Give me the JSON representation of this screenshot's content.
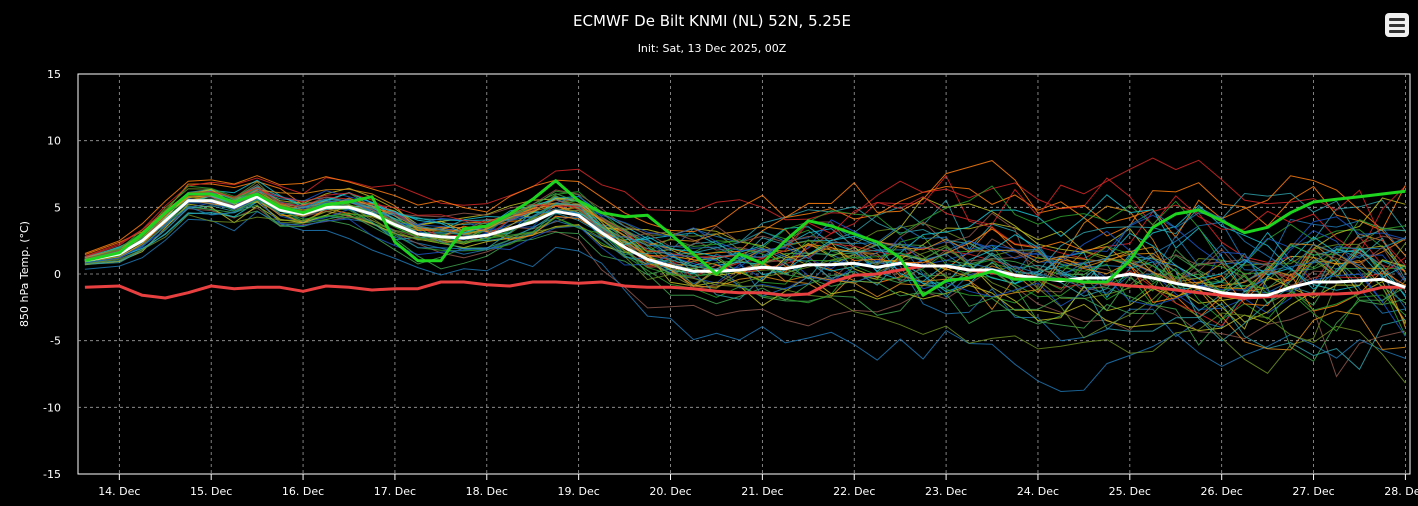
{
  "header": {
    "title": "ECMWF De Bilt KNMI (NL) 52N, 5.25E",
    "subtitle": "Init: Sat, 13 Dec 2025, 00Z",
    "menu_icon": "hamburger-menu-icon"
  },
  "chart_data": {
    "type": "line",
    "title": "ECMWF De Bilt KNMI (NL) 52N, 5.25E",
    "subtitle": "Init: Sat, 13 Dec 2025, 00Z",
    "ylabel": "850 hPa Temp. (°C)",
    "xlabel": "",
    "ylim": [
      -15,
      15
    ],
    "yticks": [
      15,
      10,
      5,
      0,
      -5,
      -10,
      -15
    ],
    "x_range_days": [
      13.55,
      28.05
    ],
    "xticks": [
      {
        "label": "14. Dec",
        "day": 14
      },
      {
        "label": "15. Dec",
        "day": 15
      },
      {
        "label": "16. Dec",
        "day": 16
      },
      {
        "label": "17. Dec",
        "day": 17
      },
      {
        "label": "18. Dec",
        "day": 18
      },
      {
        "label": "19. Dec",
        "day": 19
      },
      {
        "label": "20. Dec",
        "day": 20
      },
      {
        "label": "21. Dec",
        "day": 21
      },
      {
        "label": "22. Dec",
        "day": 22
      },
      {
        "label": "23. Dec",
        "day": 23
      },
      {
        "label": "24. Dec",
        "day": 24
      },
      {
        "label": "25. Dec",
        "day": 25
      },
      {
        "label": "26. Dec",
        "day": 26
      },
      {
        "label": "27. Dec",
        "day": 27
      },
      {
        "label": "28. Dec",
        "day": 28
      }
    ],
    "grid": true,
    "legend": "none",
    "background": "#000000",
    "ensemble": {
      "member_count": 50,
      "palette": [
        "#1f77b4",
        "#2ca02c",
        "#ff7f0e",
        "#17becf",
        "#bcbd22",
        "#8c564b",
        "#d62728",
        "#1a55c4",
        "#3fa34d",
        "#d98c1a",
        "#2f9fa8",
        "#6b8e23"
      ],
      "spread_days": [
        13.625,
        14.5,
        15.0,
        16.0,
        17.0,
        18.0,
        19.0,
        20.0,
        21.0,
        22.0,
        23.0,
        24.0,
        25.0,
        26.0,
        27.0,
        28.0
      ],
      "spread_sd": [
        0.3,
        0.7,
        0.8,
        0.9,
        1.0,
        1.1,
        1.3,
        1.7,
        2.2,
        2.7,
        3.0,
        3.3,
        3.5,
        3.8,
        4.0,
        4.2
      ]
    },
    "series": [
      {
        "role": "ensemble-mean",
        "color": "#ffffff",
        "x": [
          13.625,
          14.0,
          14.25,
          14.5,
          14.75,
          15.0,
          15.25,
          15.5,
          15.75,
          16.0,
          16.25,
          16.5,
          16.75,
          17.0,
          17.25,
          17.5,
          17.75,
          18.0,
          18.25,
          18.5,
          18.75,
          19.0,
          19.25,
          19.5,
          19.75,
          20.0,
          20.25,
          20.5,
          20.75,
          21.0,
          21.25,
          21.5,
          21.75,
          22.0,
          22.25,
          22.5,
          22.75,
          23.0,
          23.25,
          23.5,
          23.75,
          24.0,
          24.25,
          24.5,
          24.75,
          25.0,
          25.25,
          25.5,
          25.75,
          26.0,
          26.25,
          26.5,
          26.75,
          27.0,
          27.25,
          27.5,
          27.75,
          28.0
        ],
        "y": [
          1.0,
          1.5,
          2.5,
          4.0,
          5.5,
          5.5,
          5.0,
          5.8,
          4.8,
          4.5,
          5.0,
          5.0,
          4.5,
          3.7,
          3.0,
          2.8,
          2.7,
          2.9,
          3.4,
          3.9,
          4.7,
          4.4,
          3.1,
          2.0,
          1.1,
          0.6,
          0.2,
          0.2,
          0.3,
          0.5,
          0.4,
          0.7,
          0.7,
          0.8,
          0.5,
          0.8,
          0.6,
          0.6,
          0.3,
          0.3,
          -0.1,
          -0.3,
          -0.5,
          -0.3,
          -0.3,
          0.0,
          -0.3,
          -0.7,
          -1.0,
          -1.4,
          -1.6,
          -1.6,
          -1.0,
          -0.6,
          -0.6,
          -0.5,
          -0.4,
          -1.0
        ]
      },
      {
        "role": "operational",
        "color": "#1ed41e",
        "x": [
          13.625,
          14.0,
          14.25,
          14.5,
          14.75,
          15.0,
          15.25,
          15.5,
          15.75,
          16.0,
          16.25,
          16.5,
          16.75,
          17.0,
          17.25,
          17.5,
          17.75,
          18.0,
          18.25,
          18.5,
          18.75,
          19.0,
          19.25,
          19.5,
          19.75,
          20.0,
          20.25,
          20.5,
          20.75,
          21.0,
          21.25,
          21.5,
          21.75,
          22.0,
          22.25,
          22.5,
          22.75,
          23.0,
          23.25,
          23.5,
          23.75,
          24.0,
          24.25,
          24.5,
          24.75,
          25.0,
          25.25,
          25.5,
          25.75,
          26.0,
          26.25,
          26.5,
          26.75,
          27.0,
          27.25,
          27.5,
          27.75,
          28.0
        ],
        "y": [
          1.0,
          1.6,
          3.0,
          4.6,
          6.0,
          6.0,
          5.4,
          6.0,
          5.0,
          4.6,
          5.2,
          5.4,
          5.8,
          2.4,
          1.0,
          1.0,
          3.4,
          3.6,
          4.5,
          5.6,
          7.0,
          5.5,
          4.6,
          4.3,
          4.4,
          3.0,
          1.5,
          0.0,
          1.5,
          0.8,
          2.5,
          4.0,
          3.6,
          3.0,
          2.4,
          1.2,
          -1.6,
          -0.5,
          -0.3,
          0.2,
          -0.4,
          -0.4,
          -0.4,
          -0.6,
          -0.6,
          1.0,
          3.5,
          4.5,
          4.8,
          4.0,
          3.1,
          3.5,
          4.6,
          5.4,
          5.6,
          5.8,
          6.0,
          6.2
        ]
      },
      {
        "role": "climatology",
        "color": "#e84040",
        "x": [
          13.625,
          14.0,
          14.25,
          14.5,
          14.75,
          15.0,
          15.25,
          15.5,
          15.75,
          16.0,
          16.25,
          16.5,
          16.75,
          17.0,
          17.25,
          17.5,
          17.75,
          18.0,
          18.25,
          18.5,
          18.75,
          19.0,
          19.25,
          19.5,
          19.75,
          20.0,
          20.25,
          20.5,
          20.75,
          21.0,
          21.25,
          21.5,
          21.75,
          22.0,
          22.25,
          22.5,
          22.75,
          23.0,
          23.25,
          23.5,
          23.75,
          24.0,
          24.25,
          24.5,
          24.75,
          25.0,
          25.25,
          25.5,
          25.75,
          26.0,
          26.25,
          26.5,
          26.75,
          27.0,
          27.25,
          27.5,
          27.75,
          28.0
        ],
        "y": [
          -1.0,
          -0.9,
          -1.6,
          -1.8,
          -1.4,
          -0.9,
          -1.1,
          -1.0,
          -1.0,
          -1.3,
          -0.9,
          -1.0,
          -1.2,
          -1.1,
          -1.1,
          -0.6,
          -0.6,
          -0.8,
          -0.9,
          -0.6,
          -0.6,
          -0.7,
          -0.6,
          -0.9,
          -1.0,
          -1.0,
          -1.1,
          -1.3,
          -1.4,
          -1.4,
          -1.6,
          -1.5,
          -0.6,
          -0.1,
          0.0,
          0.3,
          0.6,
          0.6,
          0.3,
          0.1,
          -0.1,
          -0.4,
          -0.4,
          -0.6,
          -0.7,
          -0.9,
          -1.0,
          -1.2,
          -1.4,
          -1.6,
          -1.8,
          -1.7,
          -1.6,
          -1.5,
          -1.5,
          -1.4,
          -1.0,
          -1.0
        ]
      }
    ]
  }
}
